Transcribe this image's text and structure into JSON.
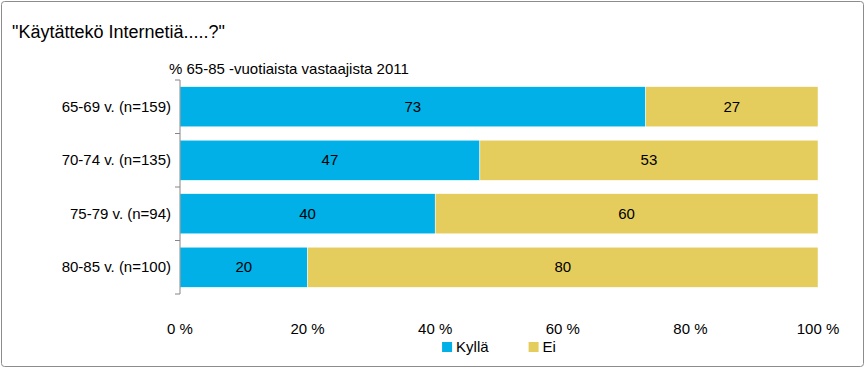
{
  "chart_data": {
    "type": "bar",
    "orientation": "horizontal",
    "stacked": true,
    "title": "\"Käytättekö Internetiä.....?\"",
    "subtitle": "% 65-85 -vuotiaista vastaajista 2011",
    "categories": [
      "65-69 v. (n=159)",
      "70-74 v. (n=135)",
      "75-79 v. (n=94)",
      "80-85 v. (n=100)"
    ],
    "series": [
      {
        "name": "Kyllä",
        "color": "#00b0e6",
        "values": [
          73,
          47,
          40,
          20
        ]
      },
      {
        "name": "Ei",
        "color": "#e4cd5c",
        "values": [
          27,
          53,
          60,
          80
        ]
      }
    ],
    "xlim": [
      0,
      100
    ],
    "xticks": [
      {
        "value": 0,
        "label": "0 %"
      },
      {
        "value": 20,
        "label": "20 %"
      },
      {
        "value": 40,
        "label": "40 %"
      },
      {
        "value": 60,
        "label": "60 %"
      },
      {
        "value": 80,
        "label": "80 %"
      },
      {
        "value": 100,
        "label": "100 %"
      }
    ],
    "grid": false,
    "data_labels": true,
    "legend": "bottom"
  }
}
